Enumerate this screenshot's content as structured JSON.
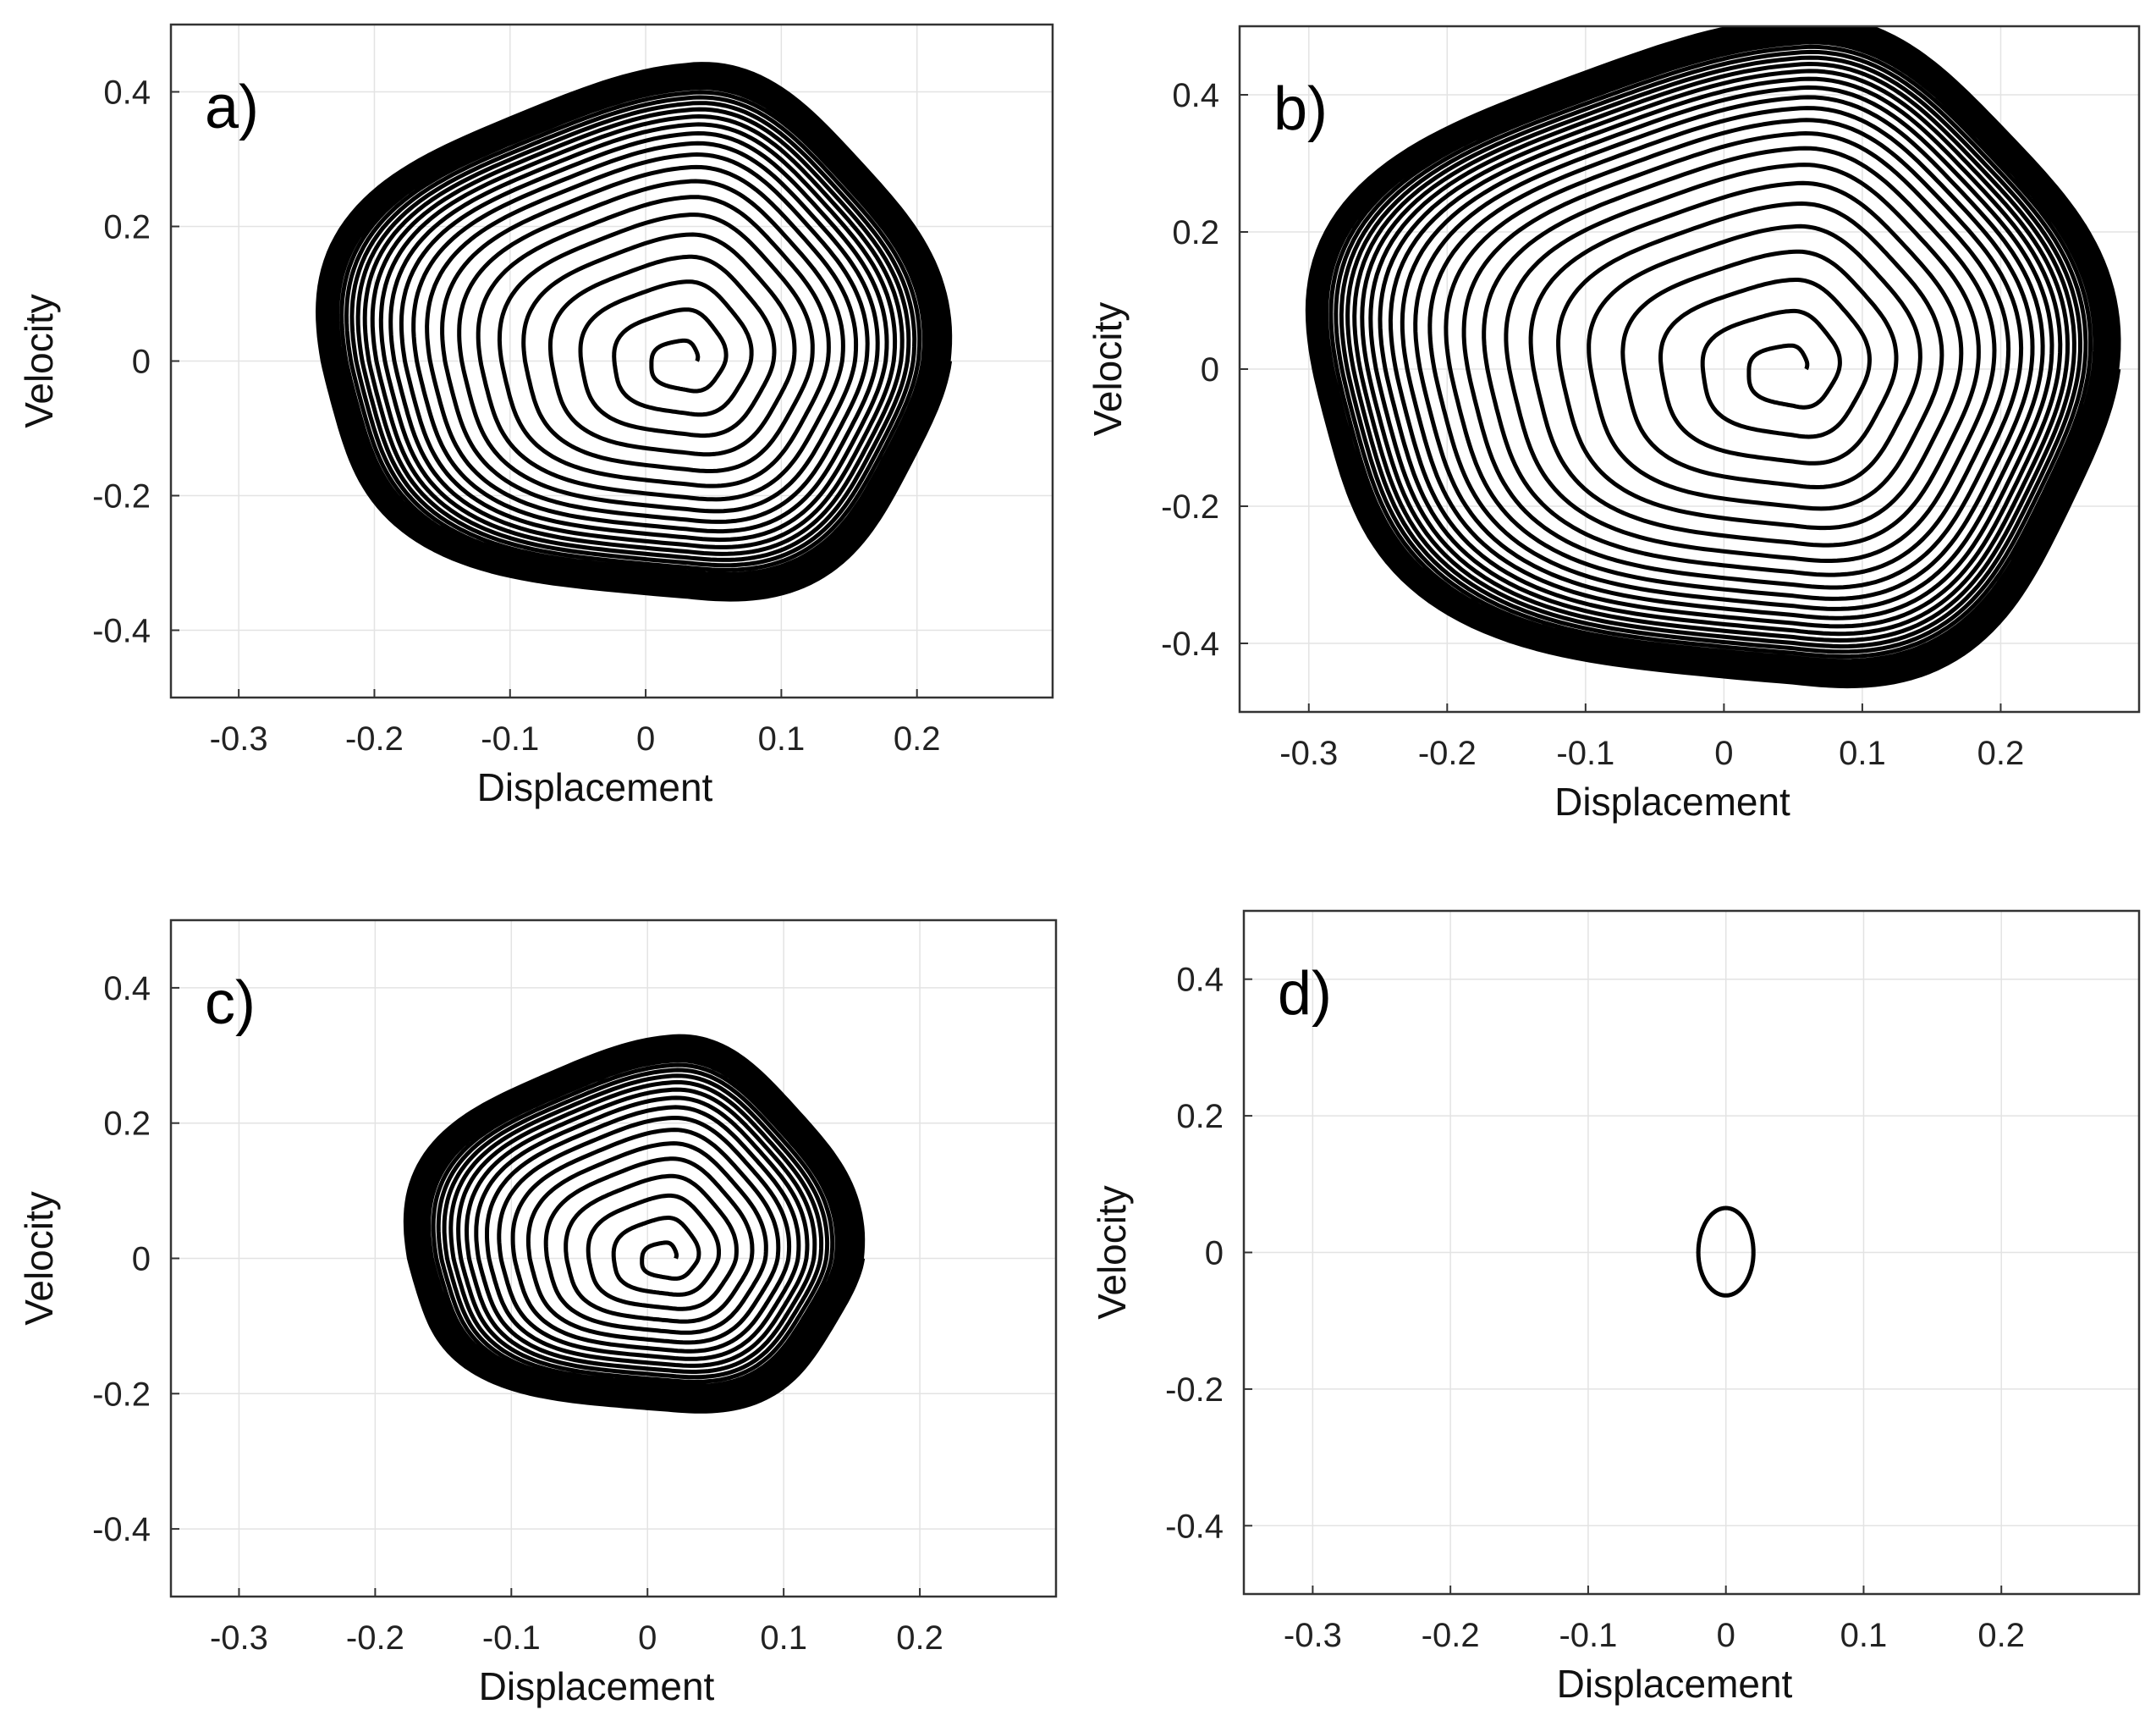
{
  "chart_data": [
    {
      "type": "line",
      "panel": "a)",
      "xlabel": "Displacement",
      "ylabel": "Velocity",
      "xlim": [
        -0.35,
        0.3
      ],
      "ylim": [
        -0.5,
        0.5
      ],
      "xticks": [
        -0.3,
        -0.2,
        -0.1,
        0,
        0.1,
        0.2
      ],
      "xtick_labels": [
        "-0.3",
        "-0.2",
        "-0.1",
        "0",
        "0.1",
        "0.2"
      ],
      "yticks": [
        -0.4,
        -0.2,
        0,
        0.2,
        0.4
      ],
      "ytick_labels": [
        "-0.4",
        "-0.2",
        "0",
        "0.2",
        "0.4"
      ],
      "grid": true,
      "trajectory": {
        "x0": 0.03,
        "y0": 0.0,
        "x_max": 0.22,
        "x_min": -0.245,
        "y_max": 0.43,
        "y_min": -0.36,
        "turns": 28
      }
    },
    {
      "type": "line",
      "panel": "b)",
      "xlabel": "Displacement",
      "ylabel": "Velocity",
      "xlim": [
        -0.35,
        0.3
      ],
      "ylim": [
        -0.5,
        0.5
      ],
      "xticks": [
        -0.3,
        -0.2,
        -0.1,
        0,
        0.1,
        0.2
      ],
      "xtick_labels": [
        "-0.3",
        "-0.2",
        "-0.1",
        "0",
        "0.1",
        "0.2"
      ],
      "yticks": [
        -0.4,
        -0.2,
        0,
        0.2,
        0.4
      ],
      "ytick_labels": [
        "-0.4",
        "-0.2",
        "0",
        "0.2",
        "0.4"
      ],
      "grid": true,
      "trajectory": {
        "x0": 0.05,
        "y0": 0.0,
        "x_max": 0.28,
        "x_min": -0.305,
        "y_max": 0.5,
        "y_min": -0.47,
        "turns": 30
      }
    },
    {
      "type": "line",
      "panel": "c)",
      "xlabel": "Displacement",
      "ylabel": "Velocity",
      "xlim": [
        -0.35,
        0.3
      ],
      "ylim": [
        -0.5,
        0.5
      ],
      "xticks": [
        -0.3,
        -0.2,
        -0.1,
        0,
        0.1,
        0.2
      ],
      "xtick_labels": [
        "-0.3",
        "-0.2",
        "-0.1",
        "0",
        "0.1",
        "0.2"
      ],
      "yticks": [
        -0.4,
        -0.2,
        0,
        0.2,
        0.4
      ],
      "ytick_labels": [
        "-0.4",
        "-0.2",
        "0",
        "0.2",
        "0.4"
      ],
      "grid": true,
      "trajectory": {
        "x0": 0.015,
        "y0": 0.0,
        "x_max": 0.155,
        "x_min": -0.18,
        "y_max": 0.32,
        "y_min": -0.23,
        "turns": 26
      }
    },
    {
      "type": "line",
      "panel": "d)",
      "xlabel": "Displacement",
      "ylabel": "Velocity",
      "xlim": [
        -0.35,
        0.3
      ],
      "ylim": [
        -0.5,
        0.5
      ],
      "xticks": [
        -0.3,
        -0.2,
        -0.1,
        0,
        0.1,
        0.2
      ],
      "xtick_labels": [
        "-0.3",
        "-0.2",
        "-0.1",
        "0",
        "0.1",
        "0.2"
      ],
      "yticks": [
        -0.4,
        -0.2,
        0,
        0.2,
        0.4
      ],
      "ytick_labels": [
        "-0.4",
        "-0.2",
        "0",
        "0.2",
        "0.4"
      ],
      "grid": true,
      "trajectory": {
        "x0": 0.0,
        "y0": 0.0,
        "x_max": 0.02,
        "x_min": -0.02,
        "y_max": 0.065,
        "y_min": -0.063,
        "turns": 1
      }
    }
  ]
}
